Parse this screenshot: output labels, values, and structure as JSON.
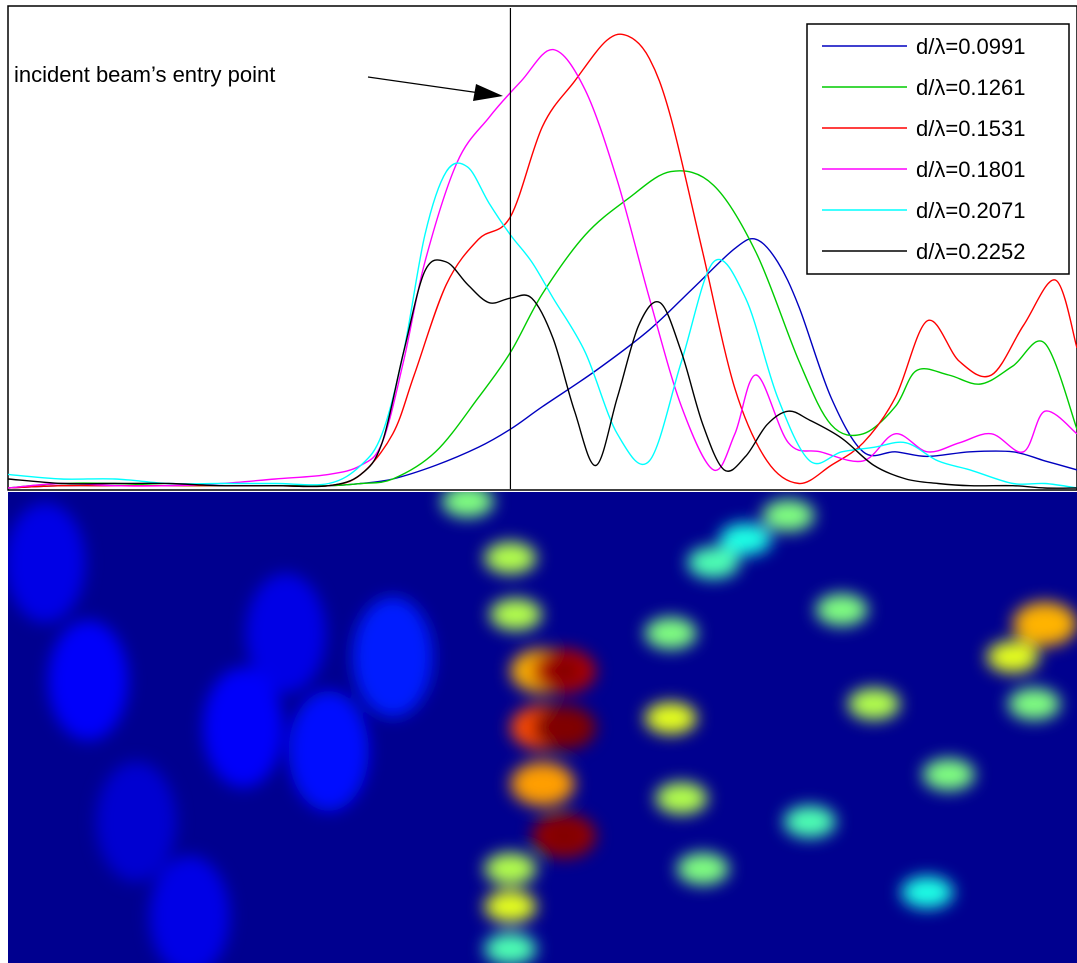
{
  "chart_data": [
    {
      "type": "line",
      "title": "",
      "xlabel": "",
      "ylabel": "",
      "xlim": [
        0,
        1
      ],
      "ylim": [
        0,
        1
      ],
      "grid": false,
      "legend_position": "top-right",
      "annotation": {
        "text": "incident beam’s entry point",
        "marker_x": 0.47
      },
      "series": [
        {
          "name": "d/λ=0.0991",
          "color": "#0000bf",
          "x": [
            0,
            0.05,
            0.1,
            0.15,
            0.2,
            0.25,
            0.3,
            0.33,
            0.36,
            0.4,
            0.44,
            0.47,
            0.5,
            0.55,
            0.6,
            0.64,
            0.68,
            0.7,
            0.72,
            0.74,
            0.77,
            0.8,
            0.83,
            0.86,
            0.9,
            0.94,
            0.97,
            1.0
          ],
          "y": [
            0,
            0.005,
            0.005,
            0.005,
            0.005,
            0.005,
            0.005,
            0.01,
            0.02,
            0.05,
            0.09,
            0.13,
            0.18,
            0.26,
            0.35,
            0.44,
            0.53,
            0.55,
            0.5,
            0.4,
            0.2,
            0.08,
            0.08,
            0.07,
            0.08,
            0.08,
            0.06,
            0.04
          ]
        },
        {
          "name": "d/λ=0.1261",
          "color": "#00cc00",
          "x": [
            0,
            0.05,
            0.1,
            0.15,
            0.2,
            0.25,
            0.3,
            0.33,
            0.36,
            0.4,
            0.44,
            0.47,
            0.5,
            0.54,
            0.58,
            0.62,
            0.66,
            0.7,
            0.74,
            0.77,
            0.8,
            0.83,
            0.85,
            0.88,
            0.91,
            0.94,
            0.97,
            1.0
          ],
          "y": [
            0,
            0.01,
            0.01,
            0.005,
            0.005,
            0.005,
            0.005,
            0.01,
            0.02,
            0.08,
            0.2,
            0.3,
            0.43,
            0.56,
            0.64,
            0.7,
            0.67,
            0.52,
            0.28,
            0.14,
            0.12,
            0.18,
            0.26,
            0.25,
            0.23,
            0.27,
            0.32,
            0.13
          ]
        },
        {
          "name": "d/λ=0.1531",
          "color": "#ff0000",
          "x": [
            0,
            0.05,
            0.1,
            0.15,
            0.2,
            0.25,
            0.3,
            0.33,
            0.36,
            0.38,
            0.41,
            0.44,
            0.47,
            0.5,
            0.53,
            0.56,
            0.58,
            0.6,
            0.62,
            0.65,
            0.68,
            0.71,
            0.74,
            0.77,
            0.8,
            0.83,
            0.86,
            0.89,
            0.92,
            0.95,
            0.98,
            1.0
          ],
          "y": [
            0,
            0.005,
            0.005,
            0.005,
            0.005,
            0.005,
            0.005,
            0.03,
            0.12,
            0.25,
            0.45,
            0.55,
            0.6,
            0.8,
            0.9,
            0.99,
            1.0,
            0.95,
            0.82,
            0.52,
            0.22,
            0.06,
            0.01,
            0.05,
            0.1,
            0.2,
            0.37,
            0.28,
            0.25,
            0.36,
            0.46,
            0.31
          ]
        },
        {
          "name": "d/λ=0.1801",
          "color": "#ff00ff",
          "x": [
            0,
            0.05,
            0.1,
            0.15,
            0.2,
            0.25,
            0.3,
            0.33,
            0.35,
            0.37,
            0.39,
            0.42,
            0.45,
            0.48,
            0.51,
            0.54,
            0.57,
            0.6,
            0.63,
            0.66,
            0.68,
            0.7,
            0.73,
            0.76,
            0.8,
            0.83,
            0.86,
            0.89,
            0.92,
            0.95,
            0.97,
            1.0
          ],
          "y": [
            0,
            0.01,
            0.005,
            0.005,
            0.01,
            0.02,
            0.03,
            0.05,
            0.1,
            0.28,
            0.5,
            0.72,
            0.82,
            0.9,
            0.97,
            0.88,
            0.68,
            0.42,
            0.18,
            0.04,
            0.12,
            0.25,
            0.1,
            0.08,
            0.06,
            0.12,
            0.08,
            0.1,
            0.12,
            0.08,
            0.17,
            0.12
          ]
        },
        {
          "name": "d/λ=0.2071",
          "color": "#00ffff",
          "x": [
            0,
            0.05,
            0.1,
            0.15,
            0.2,
            0.25,
            0.3,
            0.33,
            0.35,
            0.37,
            0.39,
            0.41,
            0.43,
            0.45,
            0.47,
            0.49,
            0.51,
            0.54,
            0.57,
            0.6,
            0.63,
            0.66,
            0.69,
            0.72,
            0.75,
            0.78,
            0.81,
            0.84,
            0.87,
            0.9,
            0.94,
            0.97,
            1.0
          ],
          "y": [
            0.03,
            0.02,
            0.02,
            0.01,
            0.01,
            0.01,
            0.01,
            0.05,
            0.12,
            0.3,
            0.56,
            0.7,
            0.71,
            0.63,
            0.56,
            0.5,
            0.42,
            0.3,
            0.12,
            0.06,
            0.28,
            0.5,
            0.42,
            0.2,
            0.06,
            0.08,
            0.09,
            0.1,
            0.06,
            0.04,
            0.01,
            0.01,
            0.0
          ]
        },
        {
          "name": "d/λ=0.2252",
          "color": "#000000",
          "x": [
            0,
            0.05,
            0.1,
            0.15,
            0.2,
            0.25,
            0.3,
            0.33,
            0.35,
            0.37,
            0.39,
            0.41,
            0.43,
            0.45,
            0.47,
            0.49,
            0.51,
            0.53,
            0.55,
            0.57,
            0.59,
            0.61,
            0.63,
            0.65,
            0.67,
            0.69,
            0.71,
            0.73,
            0.75,
            0.78,
            0.81,
            0.84,
            0.87,
            0.9,
            0.94,
            0.97,
            1.0
          ],
          "y": [
            0.02,
            0.01,
            0.01,
            0.01,
            0.005,
            0.005,
            0.005,
            0.03,
            0.1,
            0.3,
            0.48,
            0.5,
            0.45,
            0.41,
            0.42,
            0.42,
            0.33,
            0.17,
            0.05,
            0.2,
            0.36,
            0.41,
            0.3,
            0.14,
            0.04,
            0.07,
            0.14,
            0.17,
            0.15,
            0.11,
            0.05,
            0.02,
            0.01,
            0.005,
            0.005,
            0.0,
            0.0
          ]
        }
      ]
    },
    {
      "type": "heatmap",
      "colormap": "jet",
      "x": [
        0.035,
        0.075,
        0.12,
        0.17,
        0.22,
        0.26,
        0.3,
        0.36,
        0.43,
        0.47,
        0.475,
        0.5,
        0.5,
        0.52,
        0.52,
        0.5,
        0.52,
        0.47,
        0.47,
        0.47,
        0.62,
        0.62,
        0.63,
        0.65,
        0.66,
        0.69,
        0.73,
        0.78,
        0.81,
        0.75,
        0.86,
        0.88,
        0.94,
        0.97,
        0.96
      ],
      "y": [
        0.15,
        0.4,
        0.7,
        0.9,
        0.5,
        0.3,
        0.55,
        0.35,
        0.02,
        0.14,
        0.26,
        0.38,
        0.5,
        0.38,
        0.5,
        0.62,
        0.73,
        0.8,
        0.88,
        0.97,
        0.3,
        0.48,
        0.65,
        0.8,
        0.15,
        0.1,
        0.05,
        0.25,
        0.45,
        0.7,
        0.85,
        0.6,
        0.35,
        0.28,
        0.45
      ],
      "value": [
        0.1,
        0.12,
        0.08,
        0.1,
        0.12,
        0.1,
        0.14,
        0.15,
        0.5,
        0.55,
        0.55,
        0.7,
        0.8,
        0.95,
        1.0,
        0.72,
        0.98,
        0.55,
        0.6,
        0.45,
        0.5,
        0.6,
        0.55,
        0.5,
        0.45,
        0.4,
        0.5,
        0.5,
        0.55,
        0.45,
        0.4,
        0.5,
        0.6,
        0.7,
        0.5
      ]
    }
  ]
}
